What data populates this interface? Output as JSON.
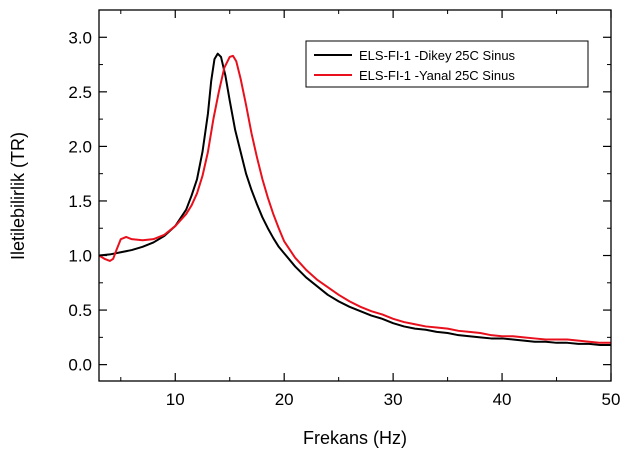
{
  "chart_data": {
    "type": "line",
    "title": "",
    "xlabel": "Frekans (Hz)",
    "ylabel": "Iletilebilirlik (TR)",
    "xlim": [
      3,
      50
    ],
    "ylim": [
      -0.15,
      3.25
    ],
    "xticks": [
      10,
      20,
      30,
      40,
      50
    ],
    "yticks": [
      0.0,
      0.5,
      1.0,
      1.5,
      2.0,
      2.5,
      3.0
    ],
    "yticks_labels": [
      "0.0",
      "0.5",
      "1.0",
      "1.5",
      "2.0",
      "2.5",
      "3.0"
    ],
    "grid": false,
    "legend_position": "top-right",
    "series": [
      {
        "name": "ELS-FI-1 -Dikey 25C Sinus",
        "color": "#000000",
        "points": [
          [
            3.0,
            1.0
          ],
          [
            4.0,
            1.01
          ],
          [
            5.0,
            1.03
          ],
          [
            6.0,
            1.05
          ],
          [
            7.0,
            1.08
          ],
          [
            8.0,
            1.12
          ],
          [
            9.0,
            1.18
          ],
          [
            10.0,
            1.27
          ],
          [
            11.0,
            1.42
          ],
          [
            11.5,
            1.55
          ],
          [
            12.0,
            1.7
          ],
          [
            12.5,
            1.95
          ],
          [
            13.0,
            2.3
          ],
          [
            13.3,
            2.6
          ],
          [
            13.6,
            2.8
          ],
          [
            13.9,
            2.85
          ],
          [
            14.2,
            2.82
          ],
          [
            14.6,
            2.65
          ],
          [
            15.0,
            2.42
          ],
          [
            15.5,
            2.15
          ],
          [
            16.0,
            1.95
          ],
          [
            16.5,
            1.75
          ],
          [
            17.0,
            1.6
          ],
          [
            17.5,
            1.47
          ],
          [
            18.0,
            1.35
          ],
          [
            18.5,
            1.25
          ],
          [
            19.0,
            1.16
          ],
          [
            19.5,
            1.08
          ],
          [
            20.0,
            1.02
          ],
          [
            21.0,
            0.9
          ],
          [
            22.0,
            0.8
          ],
          [
            23.0,
            0.72
          ],
          [
            24.0,
            0.64
          ],
          [
            25.0,
            0.58
          ],
          [
            26.0,
            0.53
          ],
          [
            27.0,
            0.49
          ],
          [
            28.0,
            0.45
          ],
          [
            29.0,
            0.42
          ],
          [
            30.0,
            0.38
          ],
          [
            31.0,
            0.35
          ],
          [
            32.0,
            0.33
          ],
          [
            33.0,
            0.32
          ],
          [
            34.0,
            0.3
          ],
          [
            35.0,
            0.29
          ],
          [
            36.0,
            0.27
          ],
          [
            37.0,
            0.26
          ],
          [
            38.0,
            0.25
          ],
          [
            39.0,
            0.24
          ],
          [
            40.0,
            0.24
          ],
          [
            41.0,
            0.23
          ],
          [
            42.0,
            0.22
          ],
          [
            43.0,
            0.21
          ],
          [
            44.0,
            0.21
          ],
          [
            45.0,
            0.2
          ],
          [
            46.0,
            0.2
          ],
          [
            47.0,
            0.19
          ],
          [
            48.0,
            0.19
          ],
          [
            49.0,
            0.18
          ],
          [
            50.0,
            0.18
          ]
        ]
      },
      {
        "name": "ELS-FI-1 -Yanal 25C Sinus",
        "color": "#e8101c",
        "points": [
          [
            3.0,
            1.0
          ],
          [
            3.5,
            0.97
          ],
          [
            4.0,
            0.95
          ],
          [
            4.3,
            0.97
          ],
          [
            4.6,
            1.05
          ],
          [
            5.0,
            1.15
          ],
          [
            5.5,
            1.17
          ],
          [
            6.0,
            1.15
          ],
          [
            7.0,
            1.14
          ],
          [
            8.0,
            1.15
          ],
          [
            9.0,
            1.19
          ],
          [
            10.0,
            1.27
          ],
          [
            11.0,
            1.38
          ],
          [
            11.5,
            1.46
          ],
          [
            12.0,
            1.57
          ],
          [
            12.5,
            1.73
          ],
          [
            13.0,
            1.95
          ],
          [
            13.5,
            2.25
          ],
          [
            14.0,
            2.5
          ],
          [
            14.5,
            2.72
          ],
          [
            15.0,
            2.82
          ],
          [
            15.3,
            2.83
          ],
          [
            15.6,
            2.78
          ],
          [
            16.0,
            2.62
          ],
          [
            16.5,
            2.38
          ],
          [
            17.0,
            2.12
          ],
          [
            17.5,
            1.9
          ],
          [
            18.0,
            1.7
          ],
          [
            18.5,
            1.53
          ],
          [
            19.0,
            1.38
          ],
          [
            19.5,
            1.25
          ],
          [
            20.0,
            1.13
          ],
          [
            21.0,
            0.98
          ],
          [
            22.0,
            0.87
          ],
          [
            23.0,
            0.78
          ],
          [
            24.0,
            0.71
          ],
          [
            25.0,
            0.64
          ],
          [
            26.0,
            0.58
          ],
          [
            27.0,
            0.53
          ],
          [
            28.0,
            0.49
          ],
          [
            29.0,
            0.46
          ],
          [
            30.0,
            0.42
          ],
          [
            31.0,
            0.39
          ],
          [
            32.0,
            0.37
          ],
          [
            33.0,
            0.35
          ],
          [
            34.0,
            0.34
          ],
          [
            35.0,
            0.33
          ],
          [
            36.0,
            0.31
          ],
          [
            37.0,
            0.3
          ],
          [
            38.0,
            0.29
          ],
          [
            39.0,
            0.27
          ],
          [
            40.0,
            0.26
          ],
          [
            41.0,
            0.26
          ],
          [
            42.0,
            0.25
          ],
          [
            43.0,
            0.24
          ],
          [
            44.0,
            0.23
          ],
          [
            45.0,
            0.23
          ],
          [
            46.0,
            0.23
          ],
          [
            47.0,
            0.22
          ],
          [
            48.0,
            0.21
          ],
          [
            49.0,
            0.2
          ],
          [
            50.0,
            0.2
          ]
        ]
      }
    ]
  }
}
